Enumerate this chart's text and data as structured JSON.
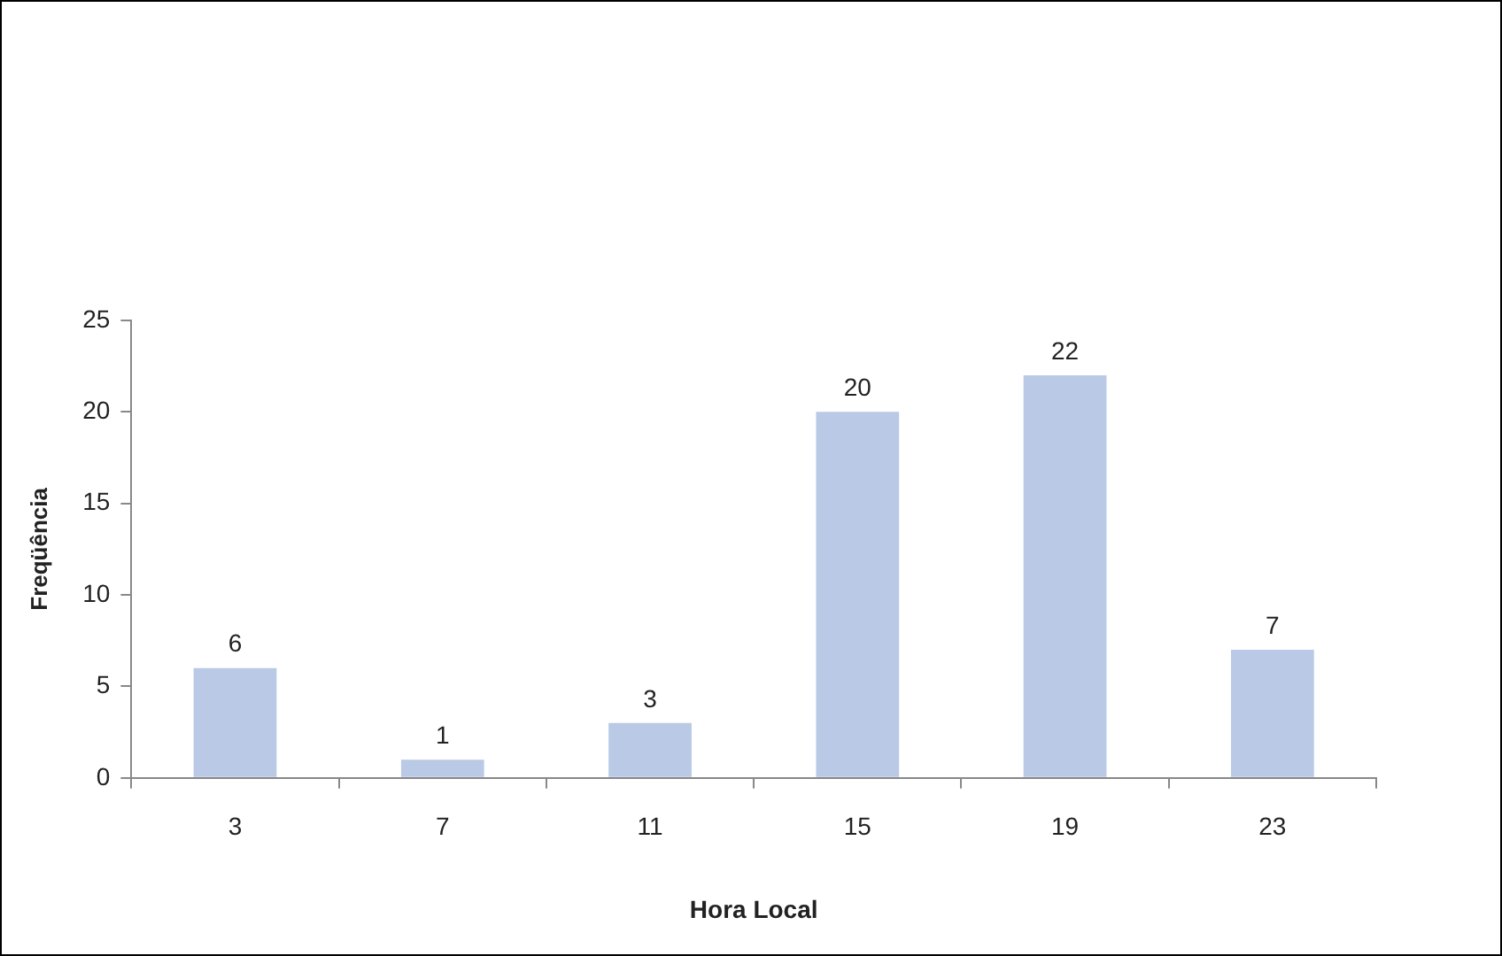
{
  "chart_data": {
    "type": "bar",
    "xlabel": "Hora Local",
    "ylabel": "Freqüência",
    "categories": [
      "3",
      "7",
      "11",
      "15",
      "19",
      "23"
    ],
    "values": [
      6,
      1,
      3,
      20,
      22,
      7
    ],
    "color": "#b9c9e6",
    "ylim": [
      0,
      25
    ],
    "yticks": [
      0,
      5,
      10,
      15,
      20,
      25
    ],
    "grid": false,
    "data_labels": true
  }
}
